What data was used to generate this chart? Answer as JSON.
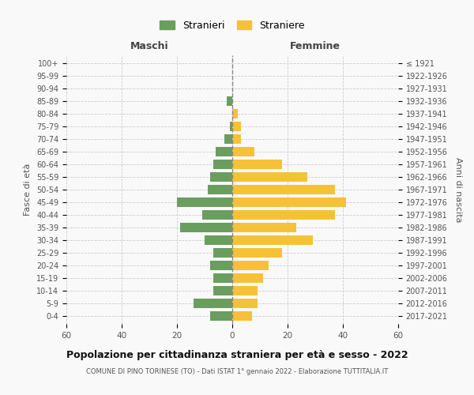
{
  "age_groups": [
    "0-4",
    "5-9",
    "10-14",
    "15-19",
    "20-24",
    "25-29",
    "30-34",
    "35-39",
    "40-44",
    "45-49",
    "50-54",
    "55-59",
    "60-64",
    "65-69",
    "70-74",
    "75-79",
    "80-84",
    "85-89",
    "90-94",
    "95-99",
    "100+"
  ],
  "birth_years": [
    "2017-2021",
    "2012-2016",
    "2007-2011",
    "2002-2006",
    "1997-2001",
    "1992-1996",
    "1987-1991",
    "1982-1986",
    "1977-1981",
    "1972-1976",
    "1967-1971",
    "1962-1966",
    "1957-1961",
    "1952-1956",
    "1947-1951",
    "1942-1946",
    "1937-1941",
    "1932-1936",
    "1927-1931",
    "1922-1926",
    "≤ 1921"
  ],
  "maschi": [
    8,
    14,
    7,
    7,
    8,
    7,
    10,
    19,
    11,
    20,
    9,
    8,
    7,
    6,
    3,
    1,
    0,
    2,
    0,
    0,
    0
  ],
  "femmine": [
    7,
    9,
    9,
    11,
    13,
    18,
    29,
    23,
    37,
    41,
    37,
    27,
    18,
    8,
    3,
    3,
    2,
    0,
    0,
    0,
    0
  ],
  "maschi_color": "#6a9e5f",
  "femmine_color": "#f5c237",
  "background_color": "#f9f9f9",
  "grid_color": "#cccccc",
  "title": "Popolazione per cittadinanza straniera per età e sesso - 2022",
  "subtitle": "COMUNE DI PINO TORINESE (TO) - Dati ISTAT 1° gennaio 2022 - Elaborazione TUTTITALIA.IT",
  "xlabel_left": "Maschi",
  "xlabel_right": "Femmine",
  "ylabel_left": "Fasce di età",
  "ylabel_right": "Anni di nascita",
  "legend_maschi": "Stranieri",
  "legend_femmine": "Straniere",
  "xlim": 60
}
